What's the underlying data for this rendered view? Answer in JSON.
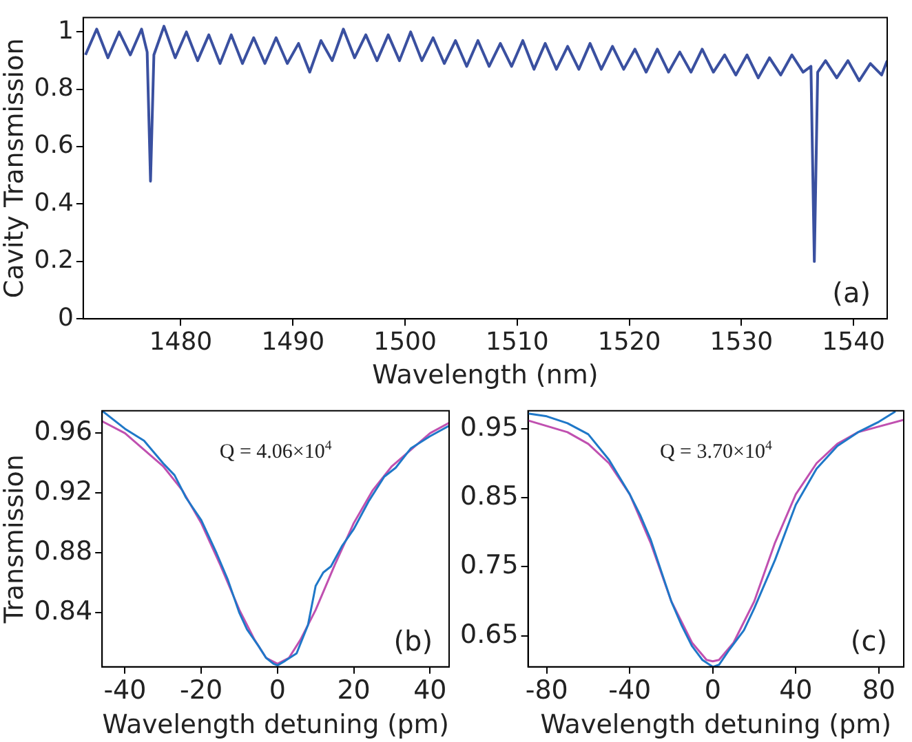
{
  "chart_data": [
    {
      "type": "line",
      "xlabel": "Wavelength (nm)",
      "ylabel": "Cavity Transmission",
      "annotations": [
        "(a)"
      ],
      "xlim": [
        1471.3,
        1543
      ],
      "ylim": [
        0,
        1.05
      ],
      "xticks": [
        1480,
        1490,
        1500,
        1510,
        1520,
        1530,
        1540
      ],
      "yticks": [
        0,
        0.2,
        0.4,
        0.6,
        0.8,
        1
      ],
      "grid": false,
      "legend": false,
      "marker": "none",
      "line_style": "solid",
      "series": [
        {
          "color": "#3a50a0",
          "x": [
            1471.5,
            1472.5,
            1473.5,
            1474.5,
            1475.5,
            1476.5,
            1477.0,
            1477.3,
            1477.6,
            1478.5,
            1479.5,
            1480.5,
            1481.5,
            1482.5,
            1483.5,
            1484.5,
            1485.5,
            1486.5,
            1487.5,
            1488.5,
            1489.5,
            1490.5,
            1491.5,
            1492.5,
            1493.5,
            1494.5,
            1495.5,
            1496.5,
            1497.5,
            1498.5,
            1499.5,
            1500.5,
            1501.5,
            1502.5,
            1503.5,
            1504.5,
            1505.5,
            1506.5,
            1507.5,
            1508.5,
            1509.5,
            1510.5,
            1511.5,
            1512.5,
            1513.5,
            1514.5,
            1515.5,
            1516.5,
            1517.5,
            1518.5,
            1519.5,
            1520.5,
            1521.5,
            1522.5,
            1523.5,
            1524.5,
            1525.5,
            1526.5,
            1527.5,
            1528.5,
            1529.5,
            1530.5,
            1531.5,
            1532.5,
            1533.5,
            1534.5,
            1535.5,
            1536.2,
            1536.5,
            1536.8,
            1537.5,
            1538.5,
            1539.5,
            1540.5,
            1541.5,
            1542.5,
            1543.0
          ],
          "values": [
            0.92,
            1.01,
            0.91,
            1.0,
            0.92,
            1.01,
            0.93,
            0.48,
            0.92,
            1.02,
            0.91,
            1.0,
            0.9,
            0.99,
            0.89,
            0.99,
            0.89,
            0.98,
            0.89,
            0.98,
            0.89,
            0.96,
            0.86,
            0.97,
            0.9,
            1.01,
            0.91,
            0.99,
            0.9,
            0.99,
            0.9,
            1.0,
            0.9,
            0.98,
            0.89,
            0.97,
            0.88,
            0.97,
            0.88,
            0.96,
            0.88,
            0.97,
            0.87,
            0.96,
            0.87,
            0.95,
            0.87,
            0.96,
            0.87,
            0.95,
            0.87,
            0.94,
            0.86,
            0.94,
            0.86,
            0.93,
            0.86,
            0.94,
            0.86,
            0.92,
            0.85,
            0.92,
            0.84,
            0.91,
            0.85,
            0.92,
            0.86,
            0.88,
            0.2,
            0.86,
            0.9,
            0.84,
            0.9,
            0.83,
            0.89,
            0.85,
            0.9
          ]
        }
      ]
    },
    {
      "type": "line",
      "xlabel": "Wavelength detuning (pm)",
      "ylabel": "Transmission",
      "annotations": [
        "Q = 4.06×10$^{4}$",
        "(b)"
      ],
      "xlim": [
        -46,
        45
      ],
      "ylim": [
        0.804,
        0.975
      ],
      "xticks": [
        -40,
        -20,
        0,
        20,
        40
      ],
      "yticks": [
        0.84,
        0.88,
        0.92,
        0.96
      ],
      "grid": false,
      "legend": false,
      "marker": "none",
      "line_style": "solid",
      "series": [
        {
          "color": "#1f78c8",
          "x": [
            -46,
            -40,
            -35,
            -30,
            -27,
            -24,
            -20,
            -16,
            -13,
            -10,
            -8,
            -5,
            -3,
            -1,
            0,
            2,
            5,
            8,
            10,
            12,
            14,
            17,
            20,
            24,
            28,
            31,
            35,
            40,
            45
          ],
          "values": [
            0.975,
            0.963,
            0.955,
            0.94,
            0.932,
            0.917,
            0.902,
            0.88,
            0.862,
            0.84,
            0.829,
            0.818,
            0.81,
            0.806,
            0.805,
            0.808,
            0.813,
            0.832,
            0.858,
            0.867,
            0.871,
            0.885,
            0.896,
            0.915,
            0.931,
            0.937,
            0.95,
            0.958,
            0.965
          ]
        },
        {
          "color": "#c050b0",
          "x": [
            -46,
            -40,
            -30,
            -25,
            -20,
            -15,
            -10,
            -6,
            -3,
            0,
            3,
            6,
            10,
            15,
            20,
            25,
            30,
            40,
            45
          ],
          "values": [
            0.968,
            0.96,
            0.938,
            0.922,
            0.9,
            0.872,
            0.842,
            0.822,
            0.81,
            0.806,
            0.81,
            0.822,
            0.842,
            0.872,
            0.9,
            0.922,
            0.938,
            0.96,
            0.967
          ]
        }
      ]
    },
    {
      "type": "line",
      "xlabel": "Wavelength detuning (pm)",
      "annotations": [
        "Q = 3.70×10$^{4}$",
        "(c)"
      ],
      "xlim": [
        -89,
        92
      ],
      "ylim": [
        0.605,
        0.976
      ],
      "xticks": [
        -80,
        -40,
        0,
        40,
        80
      ],
      "yticks": [
        0.65,
        0.75,
        0.85,
        0.95
      ],
      "grid": false,
      "legend": false,
      "marker": "none",
      "line_style": "solid",
      "series": [
        {
          "color": "#1f78c8",
          "x": [
            -89,
            -80,
            -70,
            -60,
            -50,
            -45,
            -40,
            -35,
            -30,
            -25,
            -20,
            -15,
            -10,
            -5,
            0,
            3,
            8,
            15,
            20,
            30,
            40,
            50,
            60,
            70,
            80,
            88
          ],
          "values": [
            0.972,
            0.968,
            0.958,
            0.942,
            0.905,
            0.88,
            0.855,
            0.825,
            0.79,
            0.745,
            0.7,
            0.665,
            0.635,
            0.615,
            0.605,
            0.608,
            0.63,
            0.658,
            0.69,
            0.76,
            0.84,
            0.892,
            0.925,
            0.945,
            0.96,
            0.975
          ]
        },
        {
          "color": "#c050b0",
          "x": [
            -89,
            -70,
            -60,
            -50,
            -40,
            -30,
            -20,
            -10,
            -3,
            0,
            3,
            10,
            20,
            30,
            40,
            50,
            60,
            70,
            92
          ],
          "values": [
            0.962,
            0.945,
            0.928,
            0.9,
            0.855,
            0.785,
            0.7,
            0.64,
            0.615,
            0.613,
            0.615,
            0.64,
            0.7,
            0.785,
            0.855,
            0.9,
            0.928,
            0.945,
            0.963
          ]
        }
      ]
    }
  ]
}
